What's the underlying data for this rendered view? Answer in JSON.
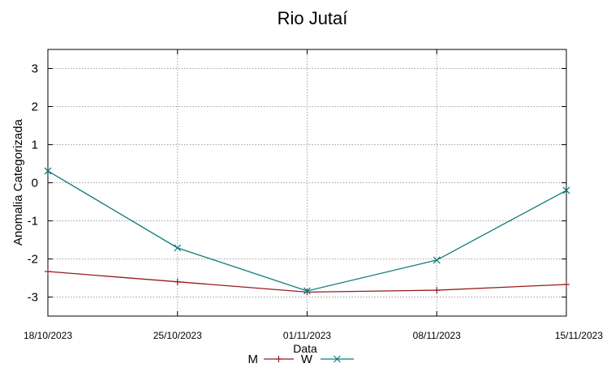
{
  "chart_data": {
    "type": "line",
    "title": "Rio Jutaí",
    "xlabel": "Data",
    "ylabel": "Anomalia Categorizada",
    "categories": [
      "18/10/2023",
      "25/10/2023",
      "01/11/2023",
      "08/11/2023",
      "15/11/2023"
    ],
    "ylim": [
      -3.5,
      3.5
    ],
    "yticks": [
      3,
      2,
      1,
      0,
      -1,
      -2,
      -3
    ],
    "grid": true,
    "legend_position": "bottom-center",
    "series": [
      {
        "name": "M",
        "color": "#9b1b1b",
        "marker": "plus",
        "values": [
          -2.33,
          -2.6,
          -2.87,
          -2.82,
          -2.67
        ]
      },
      {
        "name": "W",
        "color": "#0e7a7a",
        "marker": "cross",
        "values": [
          0.31,
          -1.71,
          -2.84,
          -2.03,
          -0.2
        ]
      }
    ]
  }
}
